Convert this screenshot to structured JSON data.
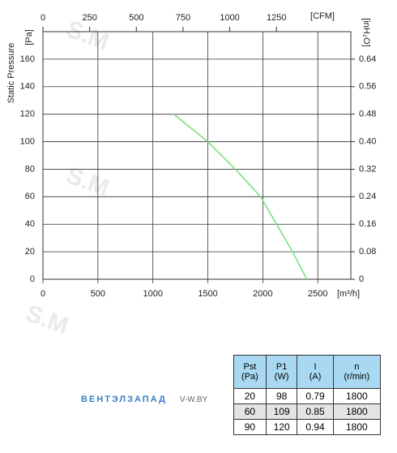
{
  "chart_data": {
    "type": "line",
    "y_label": "Static Pressure",
    "y_unit": "[Pa]",
    "y2_unit": "[inH₂O]",
    "x_unit": "[m³/h]",
    "x2_unit": "[CFM]",
    "xlim": [
      0,
      2800
    ],
    "xticks": [
      0,
      500,
      1000,
      1500,
      2000,
      2500
    ],
    "x2lim": [
      0,
      1648
    ],
    "x2ticks": [
      0,
      250,
      500,
      750,
      1000,
      1250
    ],
    "ylim": [
      0,
      180
    ],
    "yticks": [
      0,
      20,
      40,
      60,
      80,
      100,
      120,
      140,
      160
    ],
    "y2lim": [
      0,
      0.72
    ],
    "y2ticks": [
      0,
      0.08,
      0.16,
      0.24,
      0.32,
      {
        "value": 0.4,
        "label": "0.40"
      },
      0.48,
      0.56,
      0.64
    ],
    "grid": true,
    "series": [
      {
        "name": null,
        "color": "#7ee07e",
        "x": [
          1190,
          1500,
          1750,
          1980,
          2270,
          2400
        ],
        "values": [
          120,
          100,
          80,
          60,
          20,
          0
        ]
      }
    ]
  },
  "watermarks": [
    "S.M",
    "S.M",
    "S.M"
  ],
  "brand": {
    "name": "ВЕНТЭЛЗАПАД",
    "site": "V-W.BY"
  },
  "table": {
    "header": [
      "Pst\n(Pa)",
      "P1\n(W)",
      "I\n(A)",
      "n\n(r/min)"
    ],
    "rows": [
      [
        20,
        98,
        0.79,
        1800
      ],
      [
        60,
        109,
        0.85,
        1800
      ],
      [
        90,
        120,
        0.94,
        1800
      ]
    ]
  }
}
